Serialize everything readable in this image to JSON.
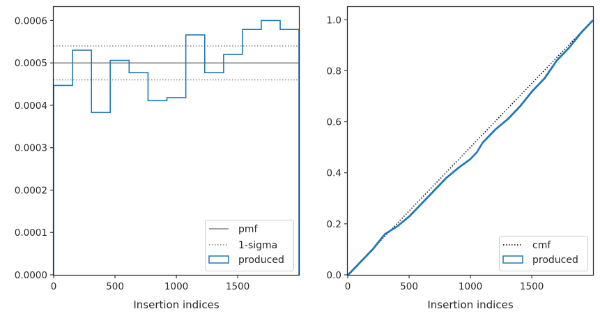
{
  "chart_data": [
    {
      "type": "histogram",
      "xlabel": "Insertion indices",
      "ylabel": "",
      "xlim": [
        0,
        1999
      ],
      "ylim": [
        0,
        0.000632
      ],
      "xticks": [
        0,
        500,
        1000,
        1500
      ],
      "xtick_labels": [
        "0",
        "500",
        "1000",
        "1500"
      ],
      "yticks": [
        0,
        0.0001,
        0.0002,
        0.0003,
        0.0004,
        0.0005,
        0.0006
      ],
      "ytick_labels": [
        "0.0000",
        "0.0001",
        "0.0002",
        "0.0003",
        "0.0004",
        "0.0005",
        "0.0006"
      ],
      "grid": false,
      "legend_position": "lower-right",
      "bin_edges": [
        0,
        154,
        308,
        461,
        615,
        769,
        923,
        1077,
        1231,
        1385,
        1538,
        1692,
        1846,
        1999
      ],
      "series": [
        {
          "name": "pmf",
          "kind": "hline",
          "value": 0.0005,
          "color": "#808080",
          "style": "solid"
        },
        {
          "name": "1-sigma",
          "kind": "hlines",
          "values": [
            0.00046,
            0.00054
          ],
          "color": "#808080",
          "style": "dotted"
        },
        {
          "name": "produced",
          "kind": "step",
          "color": "#1f77b4",
          "values": [
            0.000447,
            0.00053,
            0.000383,
            0.000506,
            0.000477,
            0.000411,
            0.000418,
            0.000566,
            0.000477,
            0.00052,
            0.000579,
            0.0006,
            0.000579
          ]
        }
      ]
    },
    {
      "type": "line",
      "xlabel": "Insertion indices",
      "ylabel": "",
      "xlim": [
        0,
        1999
      ],
      "ylim": [
        0,
        1.05
      ],
      "xticks": [
        0,
        500,
        1000,
        1500
      ],
      "xtick_labels": [
        "0",
        "500",
        "1000",
        "1500"
      ],
      "yticks": [
        0,
        0.2,
        0.4,
        0.6,
        0.8,
        1.0
      ],
      "ytick_labels": [
        "0.0",
        "0.2",
        "0.4",
        "0.6",
        "0.8",
        "1.0"
      ],
      "grid": false,
      "legend_position": "lower-right",
      "series": [
        {
          "name": "cmf",
          "kind": "line",
          "color": "#000000",
          "style": "dotted",
          "x": [
            0,
            1999
          ],
          "y": [
            0,
            1.0
          ]
        },
        {
          "name": "produced",
          "kind": "step",
          "color": "#1f77b4",
          "x": [
            0,
            100,
            200,
            300,
            400,
            500,
            600,
            700,
            800,
            900,
            1000,
            1050,
            1100,
            1200,
            1300,
            1400,
            1500,
            1600,
            1700,
            1800,
            1900,
            1999
          ],
          "y": [
            0,
            0.05,
            0.1,
            0.16,
            0.19,
            0.23,
            0.28,
            0.33,
            0.38,
            0.42,
            0.455,
            0.48,
            0.52,
            0.57,
            0.61,
            0.66,
            0.72,
            0.77,
            0.84,
            0.89,
            0.95,
            1.0
          ]
        }
      ]
    }
  ]
}
